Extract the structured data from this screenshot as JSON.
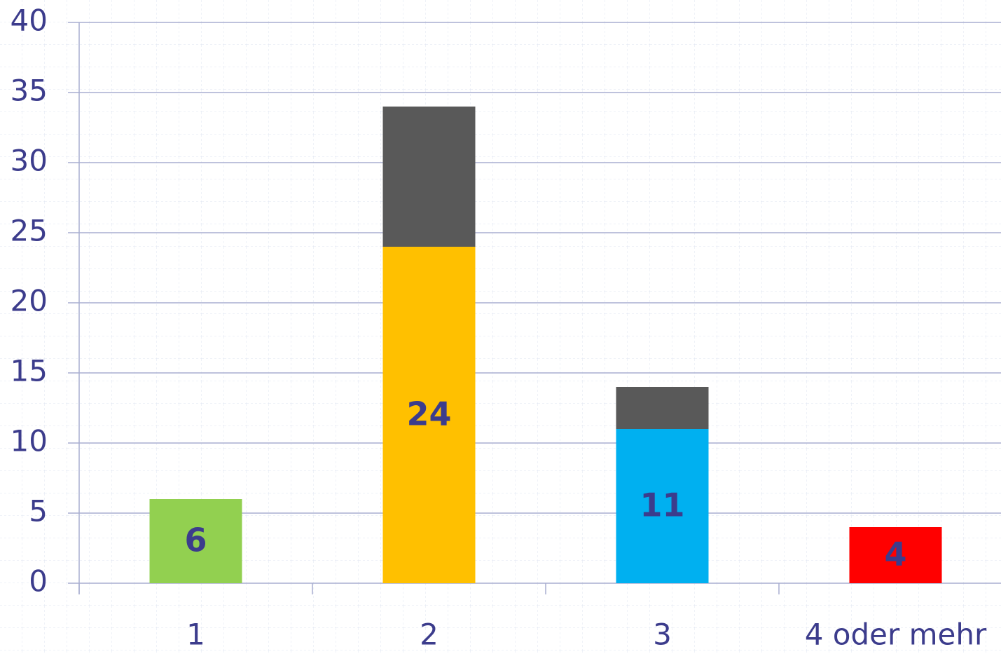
{
  "chart_data": {
    "type": "bar",
    "stacked": true,
    "categories": [
      "1",
      "2",
      "3",
      "4 oder mehr"
    ],
    "series": [
      {
        "colors": [
          "#92d050",
          "#ffc000",
          "#00b0f0",
          "#ff0000"
        ],
        "values": [
          6,
          24,
          11,
          4
        ]
      },
      {
        "color": "#595959",
        "values": [
          null,
          10,
          3,
          null
        ]
      }
    ],
    "ylim": [
      0,
      40
    ],
    "yticks": [
      0,
      5,
      10,
      15,
      20,
      25,
      30,
      35,
      40
    ],
    "grid": true
  }
}
